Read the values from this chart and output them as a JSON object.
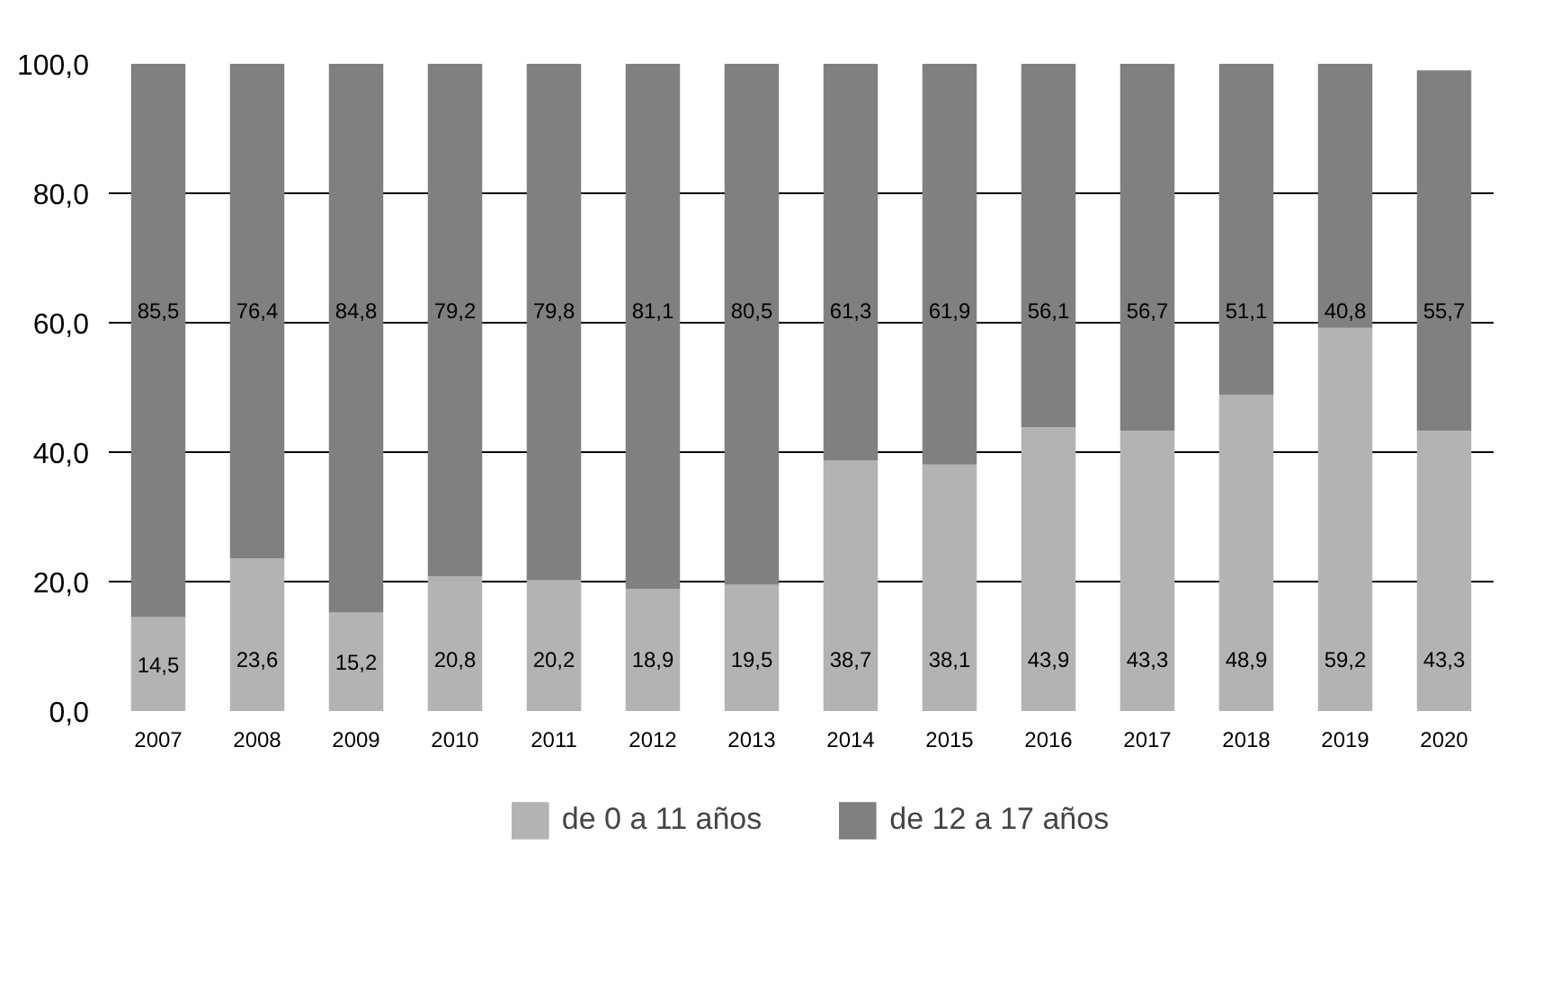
{
  "chart_data": {
    "type": "bar",
    "stacked": true,
    "legend": "bottom",
    "grid": "y",
    "categories": [
      "2007",
      "2008",
      "2009",
      "2010",
      "2011",
      "2012",
      "2013",
      "2014",
      "2015",
      "2016",
      "2017",
      "2018",
      "2019",
      "2020"
    ],
    "series": [
      {
        "name": "de 0 a 11 años",
        "color": "#b3b3b3",
        "values": [
          14.5,
          23.6,
          15.2,
          20.8,
          20.2,
          18.9,
          19.5,
          38.7,
          38.1,
          43.9,
          43.3,
          48.9,
          59.2,
          43.3
        ],
        "value_labels": [
          "14,5",
          "23,6",
          "15,2",
          "20,8",
          "20,2",
          "18,9",
          "19,5",
          "38,7",
          "38,1",
          "43,9",
          "43,3",
          "48,9",
          "59,2",
          "43,3"
        ]
      },
      {
        "name": "de 12 a 17 años",
        "color": "#808080",
        "values": [
          85.5,
          76.4,
          84.8,
          79.2,
          79.8,
          81.1,
          80.5,
          61.3,
          61.9,
          56.1,
          56.7,
          51.1,
          40.8,
          55.7
        ],
        "value_labels": [
          "85,5",
          "76,4",
          "84,8",
          "79,2",
          "79,8",
          "81,1",
          "80,5",
          "61,3",
          "61,9",
          "56,1",
          "56,7",
          "51,1",
          "40,8",
          "55,7"
        ]
      }
    ],
    "ylim": [
      0,
      100
    ],
    "yticks": [
      {
        "value": 0,
        "label": "0,0"
      },
      {
        "value": 20,
        "label": "20,0"
      },
      {
        "value": 40,
        "label": "40,0"
      },
      {
        "value": 60,
        "label": "60,0"
      },
      {
        "value": 80,
        "label": "80,0"
      },
      {
        "value": 100,
        "label": "100,0"
      }
    ]
  }
}
